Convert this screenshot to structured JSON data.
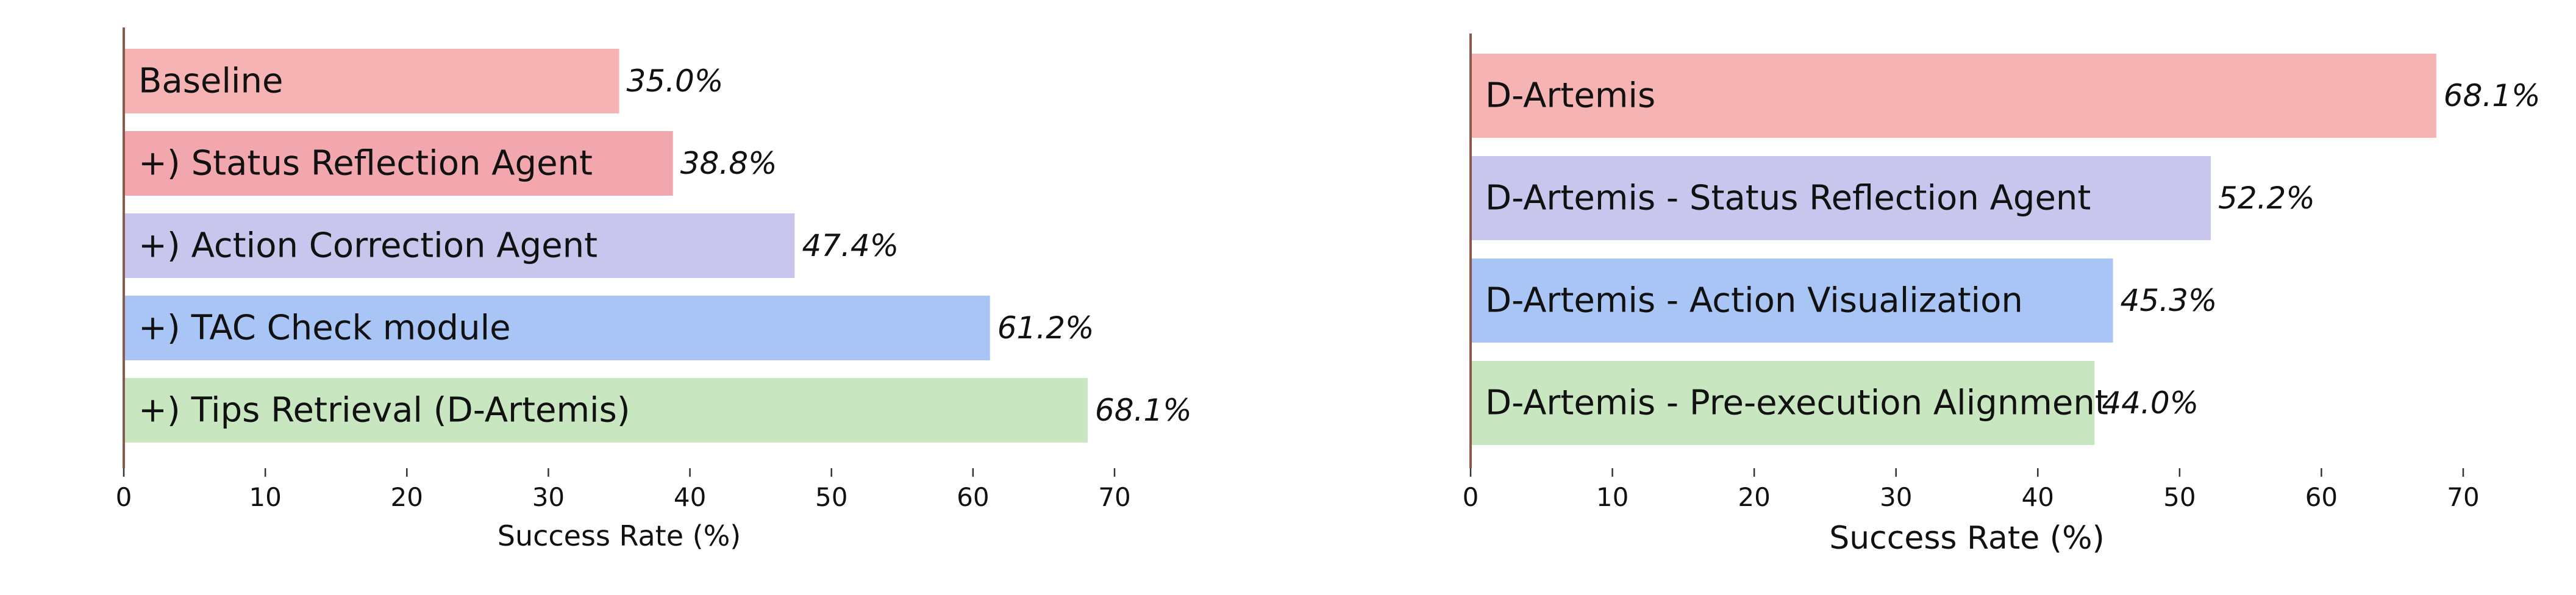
{
  "colors": {
    "axis": "#8b5a4a",
    "tick": "#333333",
    "pink": "#f5b3b3",
    "rose": "#f2a7ae",
    "lavender": "#c8c6ec",
    "blue": "#a9c5f5",
    "green": "#c8e6bf"
  },
  "chart_data": [
    {
      "type": "bar",
      "orientation": "horizontal",
      "categories": [
        "Baseline",
        "+) Status Reflection Agent",
        "+) Action Correction Agent",
        "+) TAC Check module",
        "+) Tips Retrieval (D-Artemis)"
      ],
      "values": [
        35.0,
        38.8,
        47.4,
        61.2,
        68.1
      ],
      "value_labels": [
        "35.0%",
        "38.8%",
        "47.4%",
        "61.2%",
        "68.1%"
      ],
      "bar_colors": [
        "#f5b3b3",
        "#f2a7ae",
        "#c8c6ec",
        "#a9c5f5",
        "#c8e6bf"
      ],
      "xlabel": "Success Rate (%)",
      "xlim": [
        0,
        70
      ],
      "xticks": [
        "0",
        "10",
        "20",
        "30",
        "40",
        "50",
        "60",
        "70"
      ],
      "grid": false
    },
    {
      "type": "bar",
      "orientation": "horizontal",
      "categories": [
        "D-Artemis",
        "D-Artemis - Status Reflection Agent",
        "D-Artemis - Action Visualization",
        "D-Artemis - Pre-execution Alignment"
      ],
      "values": [
        68.1,
        52.2,
        45.3,
        44.0
      ],
      "value_labels": [
        "68.1%",
        "52.2%",
        "45.3%",
        "44.0%"
      ],
      "bar_colors": [
        "#f5b3b3",
        "#c8c6ec",
        "#a9c5f5",
        "#c8e6bf"
      ],
      "xlabel": "Success Rate (%)",
      "xlim": [
        0,
        70
      ],
      "xticks": [
        "0",
        "10",
        "20",
        "30",
        "40",
        "50",
        "60",
        "70"
      ],
      "grid": false
    }
  ]
}
